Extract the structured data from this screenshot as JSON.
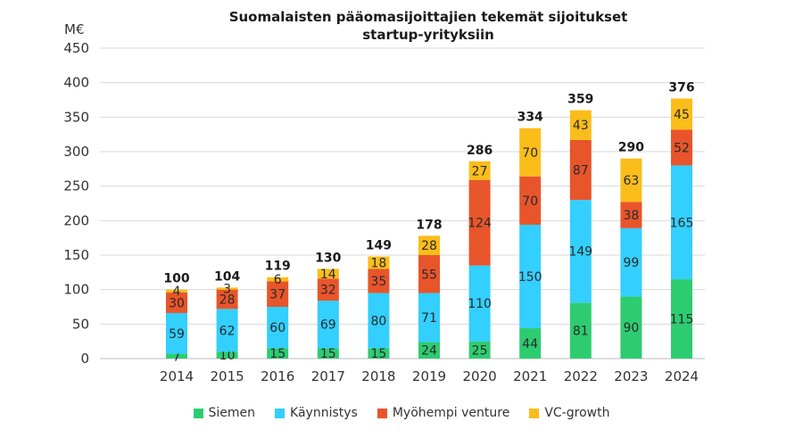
{
  "chart_data": {
    "type": "bar",
    "stacked": true,
    "title": "Suomalaisten pääomasijoittajien tekemät sijoitukset",
    "subtitle": "startup-yrityksiin",
    "ylabel": "M€",
    "ylim": [
      0,
      450
    ],
    "yticks": [
      0,
      50,
      100,
      150,
      200,
      250,
      300,
      350,
      400,
      450
    ],
    "grid": true,
    "legend_position": "bottom",
    "categories": [
      "2014",
      "2015",
      "2016",
      "2017",
      "2018",
      "2019",
      "2020",
      "2021",
      "2022",
      "2023",
      "2024"
    ],
    "series": [
      {
        "name": "Siemen",
        "color": "#2ecc71",
        "values": [
          7,
          10,
          15,
          15,
          15,
          24,
          25,
          44,
          81,
          90,
          115
        ]
      },
      {
        "name": "Käynnistys",
        "color": "#33cfff",
        "values": [
          59,
          62,
          60,
          69,
          80,
          71,
          110,
          150,
          149,
          99,
          165
        ]
      },
      {
        "name": "Myöhempi venture",
        "color": "#e8552b",
        "values": [
          30,
          28,
          37,
          32,
          35,
          55,
          124,
          70,
          87,
          38,
          52
        ]
      },
      {
        "name": "VC-growth",
        "color": "#fbbd1a",
        "values": [
          4,
          3,
          6,
          14,
          18,
          28,
          27,
          70,
          43,
          63,
          45
        ]
      }
    ],
    "totals": [
      100,
      104,
      119,
      130,
      149,
      178,
      286,
      334,
      359,
      290,
      376
    ]
  }
}
